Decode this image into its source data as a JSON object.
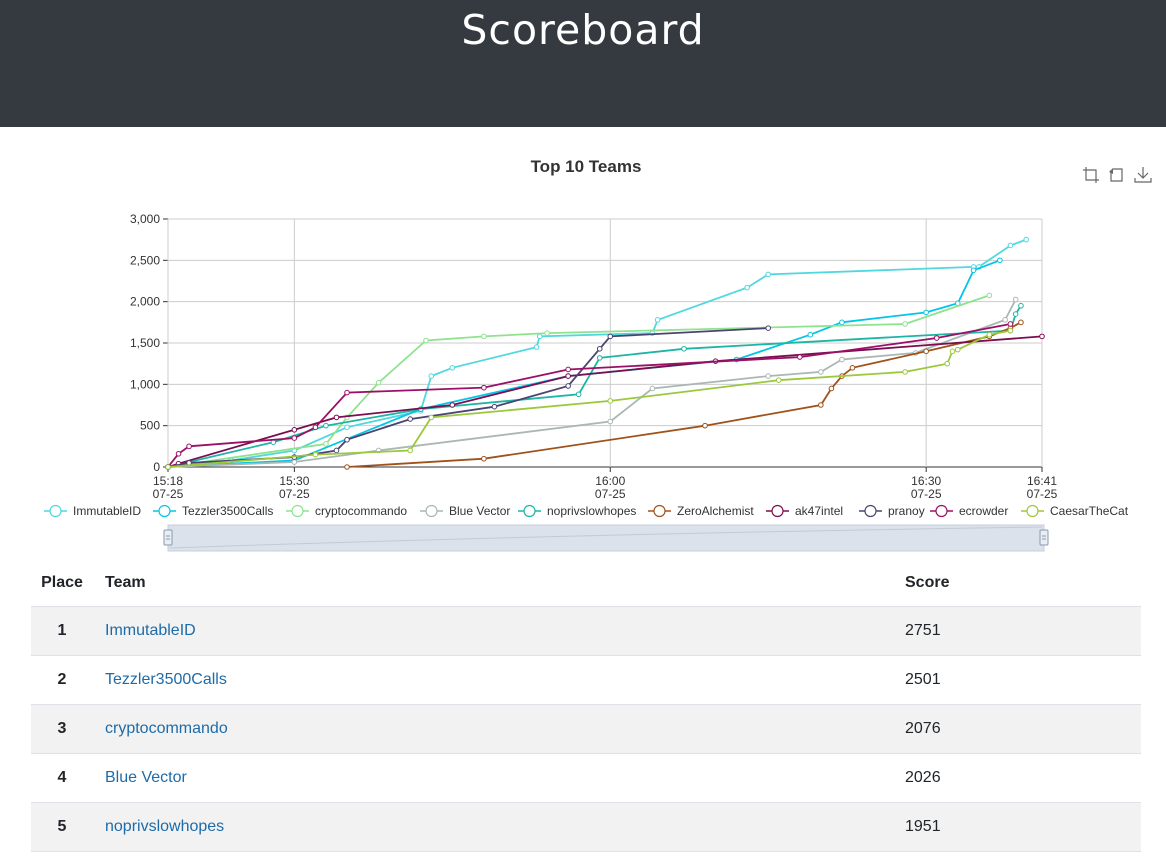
{
  "header": {
    "title": "Scoreboard"
  },
  "chart_data": {
    "type": "line",
    "title": "Top 10 Teams",
    "y_ticks": [
      "0",
      "500",
      "1,000",
      "1,500",
      "2,000",
      "2,500",
      "3,000"
    ],
    "ylim": [
      0,
      3000
    ],
    "x_ticks": [
      {
        "time": "15:18",
        "date": "07-25",
        "minute": 0
      },
      {
        "time": "15:30",
        "date": "07-25",
        "minute": 12
      },
      {
        "time": "16:00",
        "date": "07-25",
        "minute": 42
      },
      {
        "time": "16:30",
        "date": "07-25",
        "minute": 72
      },
      {
        "time": "16:41",
        "date": "07-25",
        "minute": 83
      }
    ],
    "xlim": [
      0,
      83
    ],
    "grid": true,
    "legend_placement": "bottom",
    "series": [
      {
        "name": "ImmutableID",
        "color": "#4fd8de",
        "points": [
          [
            0,
            0
          ],
          [
            6,
            80
          ],
          [
            12,
            200
          ],
          [
            17,
            480
          ],
          [
            24,
            680
          ],
          [
            25,
            1100
          ],
          [
            27,
            1200
          ],
          [
            35,
            1450
          ],
          [
            35.3,
            1580
          ],
          [
            46,
            1620
          ],
          [
            46.5,
            1780
          ],
          [
            55,
            2170
          ],
          [
            57,
            2330
          ],
          [
            76.5,
            2420
          ],
          [
            77,
            2420
          ],
          [
            80,
            2680
          ],
          [
            81.5,
            2751
          ]
        ]
      },
      {
        "name": "Tezzler3500Calls",
        "color": "#05c5e6",
        "points": [
          [
            0,
            0
          ],
          [
            12,
            80
          ],
          [
            24,
            700
          ],
          [
            38,
            1100
          ],
          [
            54,
            1300
          ],
          [
            61,
            1600
          ],
          [
            64,
            1750
          ],
          [
            72,
            1870
          ],
          [
            75,
            1980
          ],
          [
            76.5,
            2380
          ],
          [
            79,
            2501
          ]
        ]
      },
      {
        "name": "cryptocommando",
        "color": "#8ee38e",
        "points": [
          [
            0,
            0
          ],
          [
            15,
            280
          ],
          [
            17,
            600
          ],
          [
            20,
            1020
          ],
          [
            24.5,
            1530
          ],
          [
            30,
            1580
          ],
          [
            36,
            1620
          ],
          [
            70,
            1730
          ],
          [
            78,
            2076
          ]
        ]
      },
      {
        "name": "Blue Vector",
        "color": "#a9b8b4",
        "points": [
          [
            0,
            0
          ],
          [
            12,
            60
          ],
          [
            20,
            200
          ],
          [
            42,
            550
          ],
          [
            46,
            950
          ],
          [
            57,
            1100
          ],
          [
            62,
            1150
          ],
          [
            64,
            1300
          ],
          [
            71,
            1380
          ],
          [
            79.5,
            1780
          ],
          [
            80.5,
            2026
          ]
        ]
      },
      {
        "name": "noprivslowhopes",
        "color": "#1db5a4",
        "points": [
          [
            0,
            0
          ],
          [
            10,
            300
          ],
          [
            15,
            500
          ],
          [
            24,
            700
          ],
          [
            39,
            880
          ],
          [
            41,
            1320
          ],
          [
            49,
            1430
          ],
          [
            80,
            1650
          ],
          [
            80.5,
            1850
          ],
          [
            81,
            1951
          ]
        ]
      },
      {
        "name": "ZeroAlchemist",
        "color": "#a0521b",
        "points": [
          [
            17,
            0
          ],
          [
            30,
            100
          ],
          [
            51,
            500
          ],
          [
            62,
            750
          ],
          [
            63,
            950
          ],
          [
            64,
            1100
          ],
          [
            65,
            1200
          ],
          [
            72,
            1400
          ],
          [
            78,
            1580
          ],
          [
            80,
            1680
          ],
          [
            81,
            1750
          ]
        ]
      },
      {
        "name": "ak47intel",
        "color": "#7a0e50",
        "points": [
          [
            0,
            0
          ],
          [
            1,
            40
          ],
          [
            12,
            450
          ],
          [
            16,
            600
          ],
          [
            27,
            750
          ],
          [
            38,
            1100
          ],
          [
            52,
            1280
          ],
          [
            83,
            1580
          ]
        ]
      },
      {
        "name": "pranoy",
        "color": "#4c4470",
        "points": [
          [
            0,
            0
          ],
          [
            2,
            50
          ],
          [
            12,
            120
          ],
          [
            16,
            200
          ],
          [
            17,
            330
          ],
          [
            23,
            580
          ],
          [
            31,
            730
          ],
          [
            38,
            980
          ],
          [
            41,
            1430
          ],
          [
            42,
            1580
          ],
          [
            57,
            1680
          ]
        ]
      },
      {
        "name": "ecrowder",
        "color": "#9b1066",
        "points": [
          [
            0,
            0
          ],
          [
            1,
            160
          ],
          [
            2,
            250
          ],
          [
            12,
            350
          ],
          [
            14,
            480
          ],
          [
            17,
            900
          ],
          [
            30,
            960
          ],
          [
            38,
            1180
          ],
          [
            60,
            1330
          ],
          [
            73,
            1560
          ],
          [
            80,
            1730
          ]
        ]
      },
      {
        "name": "CaesarTheCat",
        "color": "#9bc93a",
        "points": [
          [
            0,
            0
          ],
          [
            14,
            150
          ],
          [
            23,
            200
          ],
          [
            25,
            600
          ],
          [
            42,
            800
          ],
          [
            58,
            1050
          ],
          [
            70,
            1150
          ],
          [
            74,
            1250
          ],
          [
            74.5,
            1400
          ],
          [
            75,
            1420
          ],
          [
            78,
            1600
          ],
          [
            80,
            1650
          ]
        ]
      }
    ]
  },
  "toolbox": {
    "icons": [
      "zoom-icon",
      "zoom-reset-icon",
      "download-icon"
    ]
  },
  "table": {
    "headers": {
      "place": "Place",
      "team": "Team",
      "score": "Score"
    },
    "rows": [
      {
        "place": "1",
        "team": "ImmutableID",
        "score": "2751"
      },
      {
        "place": "2",
        "team": "Tezzler3500Calls",
        "score": "2501"
      },
      {
        "place": "3",
        "team": "cryptocommando",
        "score": "2076"
      },
      {
        "place": "4",
        "team": "Blue Vector",
        "score": "2026"
      },
      {
        "place": "5",
        "team": "noprivslowhopes",
        "score": "1951"
      }
    ]
  }
}
